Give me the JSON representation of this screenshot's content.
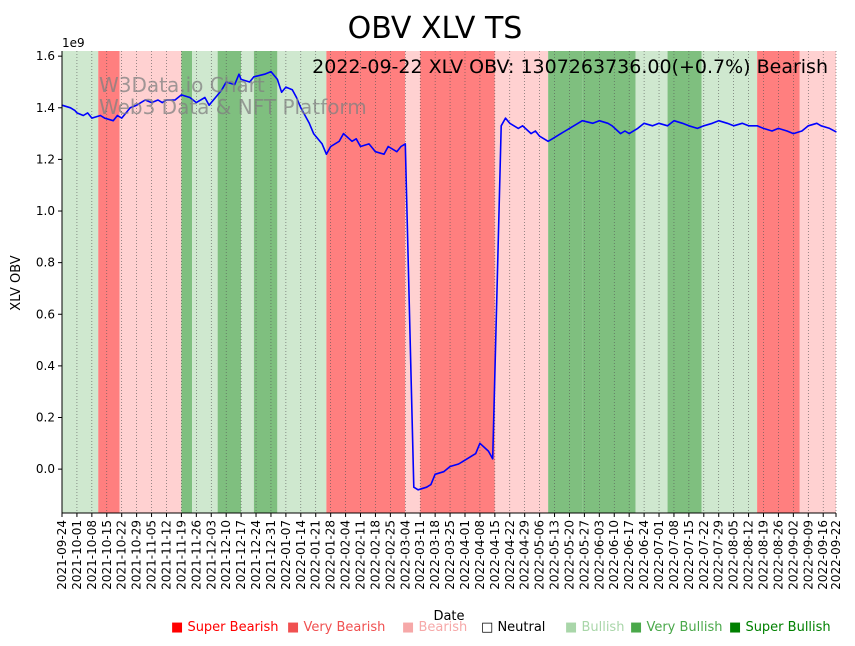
{
  "chart_data": {
    "type": "line",
    "title": "OBV XLV TS",
    "annotation": "2022-09-22 XLV OBV: 1307263736.00(+0.7%) Bearish",
    "watermark_line1": "W3Data.io Chart",
    "watermark_line2": "Web3 Data & NFT Platform",
    "xlabel": "Date",
    "ylabel": "XLV OBV",
    "y_exponent_label": "1e9",
    "ylim": [
      -0.17,
      1.62
    ],
    "yticks": [
      0.0,
      0.2,
      0.4,
      0.6,
      0.8,
      1.0,
      1.2,
      1.4,
      1.6
    ],
    "ytick_labels": [
      "0.0",
      "0.2",
      "0.4",
      "0.6",
      "0.8",
      "1.0",
      "1.2",
      "1.4",
      "1.6"
    ],
    "x_start": "2021-09-24",
    "x_end": "2022-09-22",
    "xtick_dates": [
      "2021-09-24",
      "2021-10-01",
      "2021-10-08",
      "2021-10-15",
      "2021-10-22",
      "2021-10-29",
      "2021-11-05",
      "2021-11-12",
      "2021-11-19",
      "2021-11-26",
      "2021-12-03",
      "2021-12-10",
      "2021-12-17",
      "2021-12-24",
      "2021-12-31",
      "2022-01-07",
      "2022-01-14",
      "2022-01-21",
      "2022-01-28",
      "2022-02-04",
      "2022-02-11",
      "2022-02-18",
      "2022-02-25",
      "2022-03-04",
      "2022-03-11",
      "2022-03-18",
      "2022-03-25",
      "2022-04-01",
      "2022-04-08",
      "2022-04-15",
      "2022-04-22",
      "2022-04-29",
      "2022-05-06",
      "2022-05-13",
      "2022-05-20",
      "2022-05-27",
      "2022-06-03",
      "2022-06-10",
      "2022-06-17",
      "2022-06-24",
      "2022-07-01",
      "2022-07-08",
      "2022-07-15",
      "2022-07-22",
      "2022-07-29",
      "2022-08-05",
      "2022-08-12",
      "2022-08-19",
      "2022-08-26",
      "2022-09-02",
      "2022-09-09",
      "2022-09-16",
      "2022-09-22"
    ],
    "series": [
      {
        "name": "XLV OBV",
        "color": "#0000ff",
        "points": [
          [
            "2021-09-24",
            1.41
          ],
          [
            "2021-09-28",
            1.4
          ],
          [
            "2021-09-30",
            1.39
          ],
          [
            "2021-10-01",
            1.38
          ],
          [
            "2021-10-04",
            1.37
          ],
          [
            "2021-10-06",
            1.38
          ],
          [
            "2021-10-08",
            1.36
          ],
          [
            "2021-10-12",
            1.37
          ],
          [
            "2021-10-14",
            1.36
          ],
          [
            "2021-10-18",
            1.35
          ],
          [
            "2021-10-20",
            1.37
          ],
          [
            "2021-10-22",
            1.36
          ],
          [
            "2021-10-26",
            1.4
          ],
          [
            "2021-10-29",
            1.41
          ],
          [
            "2021-11-02",
            1.43
          ],
          [
            "2021-11-05",
            1.42
          ],
          [
            "2021-11-08",
            1.43
          ],
          [
            "2021-11-10",
            1.42
          ],
          [
            "2021-11-12",
            1.43
          ],
          [
            "2021-11-16",
            1.43
          ],
          [
            "2021-11-19",
            1.45
          ],
          [
            "2021-11-23",
            1.44
          ],
          [
            "2021-11-26",
            1.42
          ],
          [
            "2021-11-30",
            1.44
          ],
          [
            "2021-12-02",
            1.41
          ],
          [
            "2021-12-06",
            1.45
          ],
          [
            "2021-12-08",
            1.47
          ],
          [
            "2021-12-10",
            1.5
          ],
          [
            "2021-12-14",
            1.49
          ],
          [
            "2021-12-16",
            1.53
          ],
          [
            "2021-12-17",
            1.51
          ],
          [
            "2021-12-21",
            1.5
          ],
          [
            "2021-12-23",
            1.52
          ],
          [
            "2021-12-28",
            1.53
          ],
          [
            "2021-12-31",
            1.54
          ],
          [
            "2022-01-03",
            1.51
          ],
          [
            "2022-01-05",
            1.46
          ],
          [
            "2022-01-07",
            1.48
          ],
          [
            "2022-01-10",
            1.47
          ],
          [
            "2022-01-12",
            1.44
          ],
          [
            "2022-01-14",
            1.4
          ],
          [
            "2022-01-18",
            1.34
          ],
          [
            "2022-01-20",
            1.3
          ],
          [
            "2022-01-24",
            1.26
          ],
          [
            "2022-01-26",
            1.22
          ],
          [
            "2022-01-28",
            1.25
          ],
          [
            "2022-02-01",
            1.27
          ],
          [
            "2022-02-03",
            1.3
          ],
          [
            "2022-02-07",
            1.27
          ],
          [
            "2022-02-09",
            1.28
          ],
          [
            "2022-02-11",
            1.25
          ],
          [
            "2022-02-15",
            1.26
          ],
          [
            "2022-02-17",
            1.24
          ],
          [
            "2022-02-18",
            1.23
          ],
          [
            "2022-02-22",
            1.22
          ],
          [
            "2022-02-24",
            1.25
          ],
          [
            "2022-02-28",
            1.23
          ],
          [
            "2022-03-02",
            1.25
          ],
          [
            "2022-03-04",
            1.26
          ],
          [
            "2022-03-08",
            -0.07
          ],
          [
            "2022-03-10",
            -0.08
          ],
          [
            "2022-03-14",
            -0.07
          ],
          [
            "2022-03-16",
            -0.06
          ],
          [
            "2022-03-18",
            -0.02
          ],
          [
            "2022-03-22",
            -0.01
          ],
          [
            "2022-03-25",
            0.01
          ],
          [
            "2022-03-29",
            0.02
          ],
          [
            "2022-03-31",
            0.03
          ],
          [
            "2022-04-04",
            0.05
          ],
          [
            "2022-04-06",
            0.06
          ],
          [
            "2022-04-08",
            0.1
          ],
          [
            "2022-04-12",
            0.07
          ],
          [
            "2022-04-14",
            0.04
          ],
          [
            "2022-04-18",
            1.33
          ],
          [
            "2022-04-20",
            1.36
          ],
          [
            "2022-04-22",
            1.34
          ],
          [
            "2022-04-26",
            1.32
          ],
          [
            "2022-04-28",
            1.33
          ],
          [
            "2022-05-02",
            1.3
          ],
          [
            "2022-05-04",
            1.31
          ],
          [
            "2022-05-06",
            1.29
          ],
          [
            "2022-05-10",
            1.27
          ],
          [
            "2022-05-12",
            1.28
          ],
          [
            "2022-05-16",
            1.3
          ],
          [
            "2022-05-18",
            1.31
          ],
          [
            "2022-05-20",
            1.32
          ],
          [
            "2022-05-24",
            1.34
          ],
          [
            "2022-05-26",
            1.35
          ],
          [
            "2022-05-31",
            1.34
          ],
          [
            "2022-06-03",
            1.35
          ],
          [
            "2022-06-07",
            1.34
          ],
          [
            "2022-06-09",
            1.33
          ],
          [
            "2022-06-13",
            1.3
          ],
          [
            "2022-06-15",
            1.31
          ],
          [
            "2022-06-17",
            1.3
          ],
          [
            "2022-06-21",
            1.32
          ],
          [
            "2022-06-24",
            1.34
          ],
          [
            "2022-06-28",
            1.33
          ],
          [
            "2022-07-01",
            1.34
          ],
          [
            "2022-07-05",
            1.33
          ],
          [
            "2022-07-08",
            1.35
          ],
          [
            "2022-07-12",
            1.34
          ],
          [
            "2022-07-15",
            1.33
          ],
          [
            "2022-07-19",
            1.32
          ],
          [
            "2022-07-22",
            1.33
          ],
          [
            "2022-07-26",
            1.34
          ],
          [
            "2022-07-29",
            1.35
          ],
          [
            "2022-08-02",
            1.34
          ],
          [
            "2022-08-05",
            1.33
          ],
          [
            "2022-08-09",
            1.34
          ],
          [
            "2022-08-12",
            1.33
          ],
          [
            "2022-08-16",
            1.33
          ],
          [
            "2022-08-19",
            1.32
          ],
          [
            "2022-08-23",
            1.31
          ],
          [
            "2022-08-26",
            1.32
          ],
          [
            "2022-08-30",
            1.31
          ],
          [
            "2022-09-02",
            1.3
          ],
          [
            "2022-09-06",
            1.31
          ],
          [
            "2022-09-09",
            1.33
          ],
          [
            "2022-09-13",
            1.34
          ],
          [
            "2022-09-15",
            1.33
          ],
          [
            "2022-09-19",
            1.32
          ],
          [
            "2022-09-22",
            1.307
          ]
        ]
      }
    ],
    "sentiment_bands": [
      {
        "start": "2021-09-24",
        "end": "2021-10-11",
        "level": "Bullish"
      },
      {
        "start": "2021-10-11",
        "end": "2021-10-21",
        "level": "Very Bearish"
      },
      {
        "start": "2021-10-21",
        "end": "2021-11-19",
        "level": "Bearish"
      },
      {
        "start": "2021-11-19",
        "end": "2021-11-24",
        "level": "Very Bullish"
      },
      {
        "start": "2021-11-24",
        "end": "2021-12-06",
        "level": "Bullish"
      },
      {
        "start": "2021-12-06",
        "end": "2021-12-17",
        "level": "Very Bullish"
      },
      {
        "start": "2021-12-17",
        "end": "2021-12-23",
        "level": "Bullish"
      },
      {
        "start": "2021-12-23",
        "end": "2022-01-03",
        "level": "Very Bullish"
      },
      {
        "start": "2022-01-03",
        "end": "2022-01-26",
        "level": "Bullish"
      },
      {
        "start": "2022-01-26",
        "end": "2022-03-04",
        "level": "Very Bearish"
      },
      {
        "start": "2022-03-04",
        "end": "2022-03-11",
        "level": "Bearish"
      },
      {
        "start": "2022-03-11",
        "end": "2022-04-15",
        "level": "Very Bearish"
      },
      {
        "start": "2022-04-15",
        "end": "2022-05-10",
        "level": "Bearish"
      },
      {
        "start": "2022-05-10",
        "end": "2022-05-26",
        "level": "Very Bullish"
      },
      {
        "start": "2022-05-26",
        "end": "2022-06-20",
        "level": "Very Bullish"
      },
      {
        "start": "2022-06-20",
        "end": "2022-07-05",
        "level": "Bullish"
      },
      {
        "start": "2022-07-05",
        "end": "2022-07-21",
        "level": "Very Bullish"
      },
      {
        "start": "2022-07-21",
        "end": "2022-08-16",
        "level": "Bullish"
      },
      {
        "start": "2022-08-16",
        "end": "2022-09-05",
        "level": "Very Bearish"
      },
      {
        "start": "2022-09-05",
        "end": "2022-09-22",
        "level": "Bearish"
      }
    ],
    "sentiment_colors": {
      "Super Bearish": "#ff0000",
      "Very Bearish": "#ff7f7f",
      "Bearish": "#ffd1d1",
      "Neutral": "#ffffff",
      "Bullish": "#cfe8cf",
      "Very Bullish": "#7fbf7f",
      "Super Bullish": "#008000"
    }
  },
  "legend": {
    "items": [
      {
        "label": "Super Bearish",
        "color": "#ff0000",
        "text_color": "#ff0000",
        "symbol": "■"
      },
      {
        "label": "Very Bearish",
        "color": "#f05050",
        "text_color": "#f05050",
        "symbol": "■"
      },
      {
        "label": "Bearish",
        "color": "#f6a8a8",
        "text_color": "#f6a8a8",
        "symbol": "■"
      },
      {
        "label": "Neutral",
        "color": "#000000",
        "text_color": "#000000",
        "symbol": "□"
      },
      {
        "label": "Bullish",
        "color": "#a9d6a9",
        "text_color": "#a9d6a9",
        "symbol": "■"
      },
      {
        "label": "Very Bullish",
        "color": "#4aa84a",
        "text_color": "#4aa84a",
        "symbol": "■"
      },
      {
        "label": "Super Bullish",
        "color": "#008000",
        "text_color": "#008000",
        "symbol": "■"
      }
    ]
  }
}
